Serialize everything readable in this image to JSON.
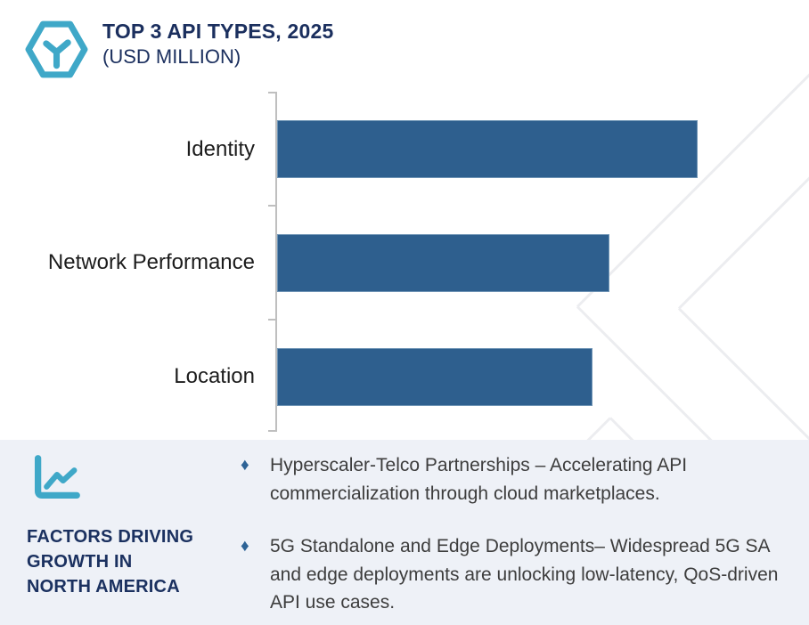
{
  "header": {
    "title": "TOP 3 API TYPES, 2025",
    "subtitle": "(USD MILLION)",
    "logo_icon": "hexagon-y-icon",
    "title_color": "#1b2f5e",
    "accent_color": "#3fa8c8"
  },
  "chart_data": {
    "type": "bar",
    "orientation": "horizontal",
    "title": "TOP 3 API TYPES, 2025",
    "subtitle": "(USD MILLION)",
    "categories": [
      "Identity",
      "Network Performance",
      "Location"
    ],
    "values_pct_of_max": [
      100,
      79,
      75
    ],
    "value_labels_visible": false,
    "value_axis_visible": false,
    "bar_color": "#2e5f8e",
    "axis_color": "#bfbfbf",
    "xlabel": "",
    "ylabel": "",
    "grid": false,
    "legend": false
  },
  "factors_panel": {
    "icon": "line-chart-icon",
    "heading": "FACTORS DRIVING GROWTH IN NORTH AMERICA",
    "heading_lines": [
      "FACTORS DRIVING",
      "GROWTH IN",
      "NORTH AMERICA"
    ],
    "heading_color": "#1b3160",
    "background_color": "#eef1f7",
    "bullet_marker": "♦",
    "bullet_marker_color": "#2d6396",
    "bullets": [
      "Hyperscaler-Telco Partnerships – Accelerating API commercialization through cloud marketplaces.",
      "5G Standalone and Edge Deployments– Widespread 5G SA and edge deployments are unlocking low-latency, QoS-driven API use cases."
    ]
  }
}
